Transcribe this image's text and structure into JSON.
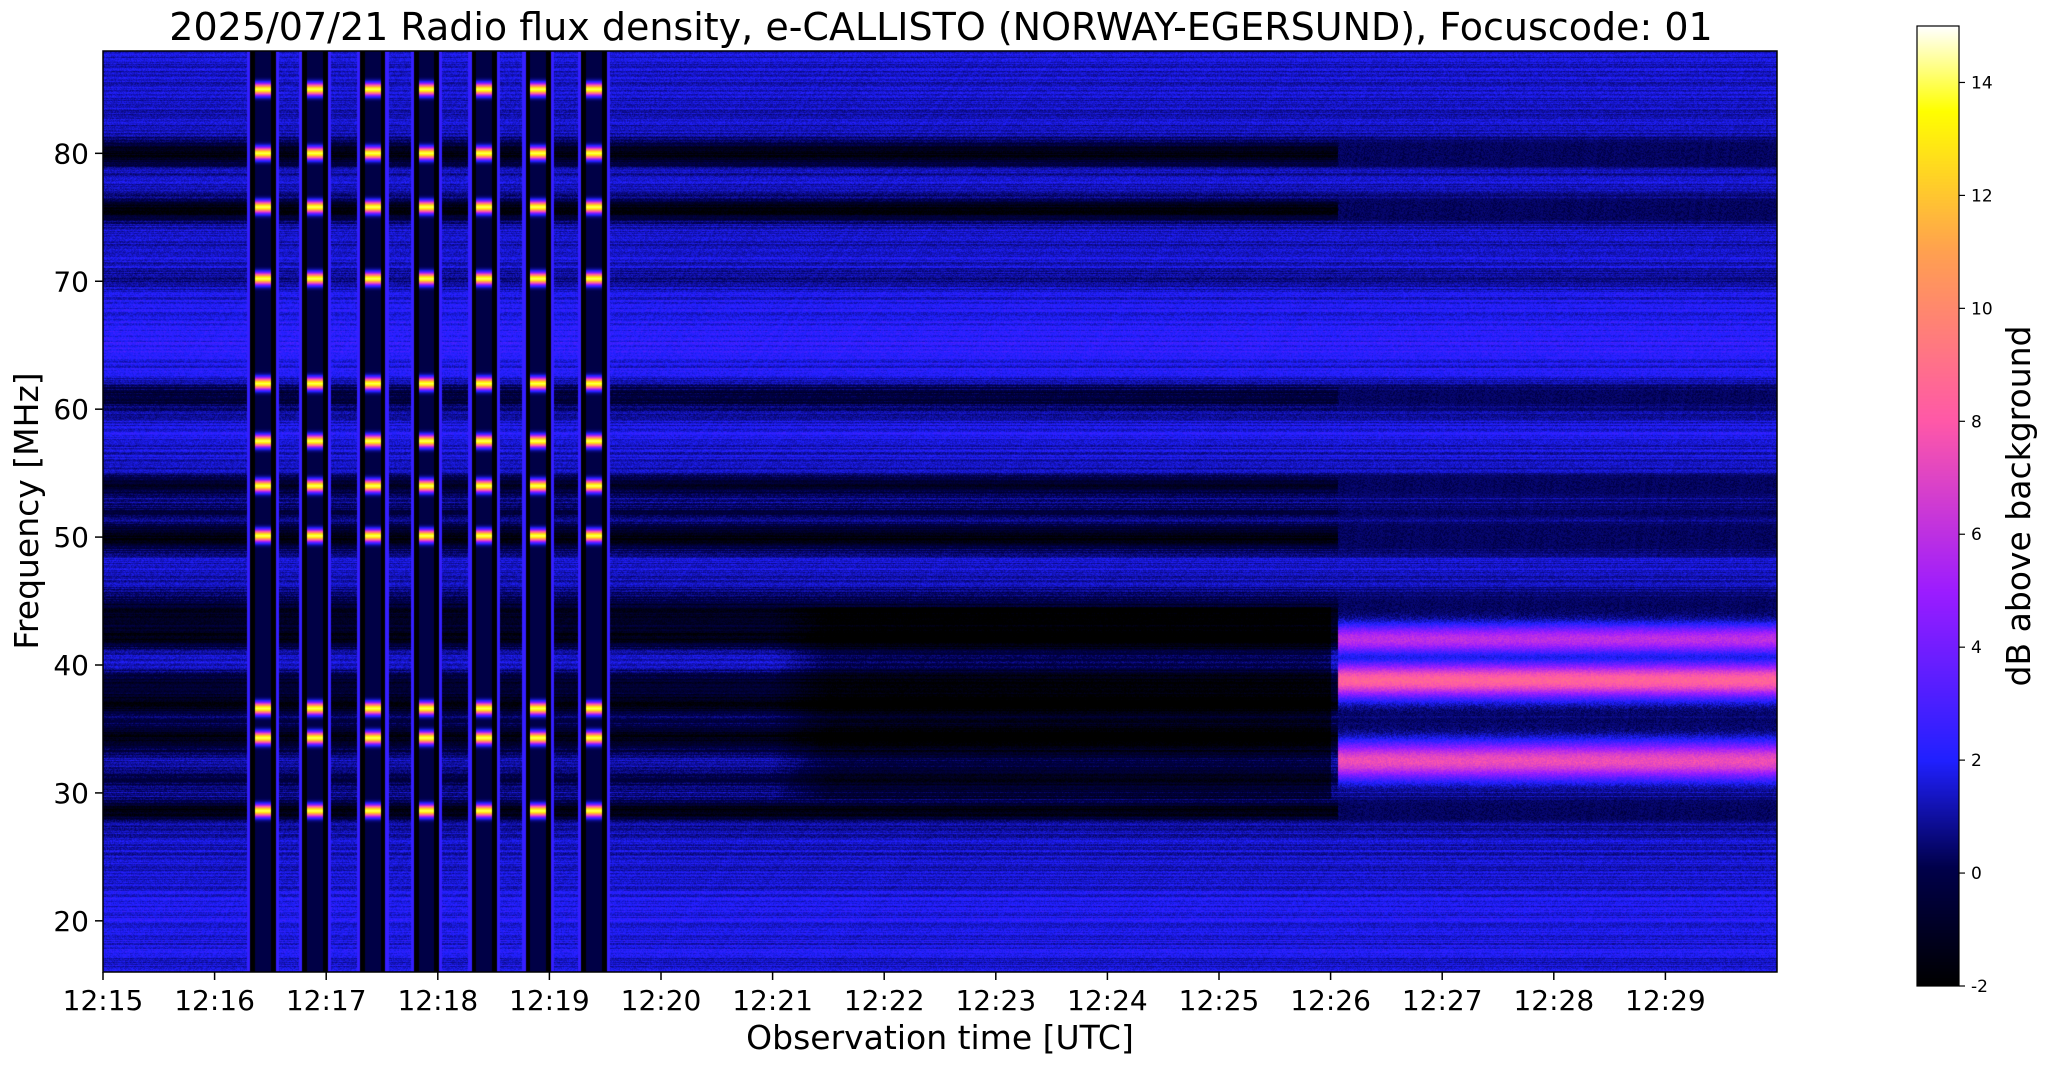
{
  "chart_data": {
    "type": "heatmap",
    "title": "2025/07/21  Radio flux density, e-CALLISTO (NORWAY-EGERSUND), Focuscode: 01",
    "xlabel": "Observation time [UTC]",
    "ylabel": "Frequency [MHz]",
    "colorbar_label": "dB above background",
    "x_ticks": [
      "12:15",
      "12:16",
      "12:17",
      "12:18",
      "12:19",
      "12:20",
      "12:21",
      "12:22",
      "12:23",
      "12:24",
      "12:25",
      "12:26",
      "12:27",
      "12:28",
      "12:29"
    ],
    "xlim": [
      "12:15",
      "12:30"
    ],
    "y_ticks": [
      20,
      30,
      40,
      50,
      60,
      70,
      80
    ],
    "ylim": [
      16,
      88
    ],
    "colorbar_ticks": [
      -2,
      0,
      2,
      4,
      6,
      8,
      10,
      12,
      14
    ],
    "clim": [
      -2,
      15
    ],
    "colormap": "gnuplot2",
    "colormap_stops": [
      {
        "value": -2.0,
        "color": "#000000"
      },
      {
        "value": 0.1,
        "color": "#00004a"
      },
      {
        "value": 2.0,
        "color": "#2020ff"
      },
      {
        "value": 5.0,
        "color": "#9c1cff"
      },
      {
        "value": 8.0,
        "color": "#ff58a8"
      },
      {
        "value": 11.0,
        "color": "#ffa050"
      },
      {
        "value": 13.5,
        "color": "#ffff00"
      },
      {
        "value": 15.0,
        "color": "#ffffff"
      }
    ],
    "features": {
      "background_level_db": 1.4,
      "frequency_bands": [
        {
          "center_mhz": 80.0,
          "width_mhz": 1.0,
          "delta_db": -3
        },
        {
          "center_mhz": 75.6,
          "width_mhz": 0.9,
          "delta_db": -3
        },
        {
          "center_mhz": 70.2,
          "width_mhz": 0.6,
          "delta_db": -1
        },
        {
          "center_mhz": 65.5,
          "width_mhz": 3.0,
          "delta_db": 0.8
        },
        {
          "center_mhz": 61.0,
          "width_mhz": 1.0,
          "delta_db": -2
        },
        {
          "center_mhz": 58.0,
          "width_mhz": 0.8,
          "delta_db": 0.6
        },
        {
          "center_mhz": 54.0,
          "width_mhz": 0.8,
          "delta_db": -2.5
        },
        {
          "center_mhz": 52.0,
          "width_mhz": 0.6,
          "delta_db": -1.5
        },
        {
          "center_mhz": 50.0,
          "width_mhz": 1.0,
          "delta_db": -3
        },
        {
          "center_mhz": 44.0,
          "width_mhz": 1.6,
          "delta_db": -2.5
        },
        {
          "center_mhz": 42.0,
          "width_mhz": 0.8,
          "delta_db": -2.5
        },
        {
          "center_mhz": 38.8,
          "width_mhz": 0.8,
          "delta_db": -2
        },
        {
          "center_mhz": 37.0,
          "width_mhz": 1.0,
          "delta_db": -3
        },
        {
          "center_mhz": 34.3,
          "width_mhz": 1.1,
          "delta_db": -3
        },
        {
          "center_mhz": 31.0,
          "width_mhz": 0.8,
          "delta_db": -1.5
        },
        {
          "center_mhz": 28.6,
          "width_mhz": 0.8,
          "delta_db": -3
        },
        {
          "center_mhz": 20.0,
          "width_mhz": 2.5,
          "delta_db": 0.5
        }
      ],
      "calibration_stripes": {
        "times": [
          "12:16:26",
          "12:16:54",
          "12:17:25",
          "12:17:54",
          "12:18:25",
          "12:18:54",
          "12:19:24"
        ],
        "bright_lines_mhz": [
          85.0,
          80.0,
          75.8,
          70.2,
          62.0,
          57.5,
          54.0,
          50.1,
          36.6,
          34.3,
          28.6
        ]
      },
      "burst_region": {
        "start": "12:26:04",
        "end": "12:30:00",
        "bands": [
          {
            "center_mhz": 42.0,
            "width_mhz": 1.2,
            "level_db": 6
          },
          {
            "center_mhz": 38.8,
            "width_mhz": 1.4,
            "level_db": 8.5
          },
          {
            "center_mhz": 32.5,
            "width_mhz": 1.5,
            "level_db": 7.5
          }
        ]
      },
      "dark_region": {
        "start": "12:21:00",
        "end": "12:26:00",
        "fmin_mhz": 29.5,
        "fmax_mhz": 44.5
      }
    }
  }
}
